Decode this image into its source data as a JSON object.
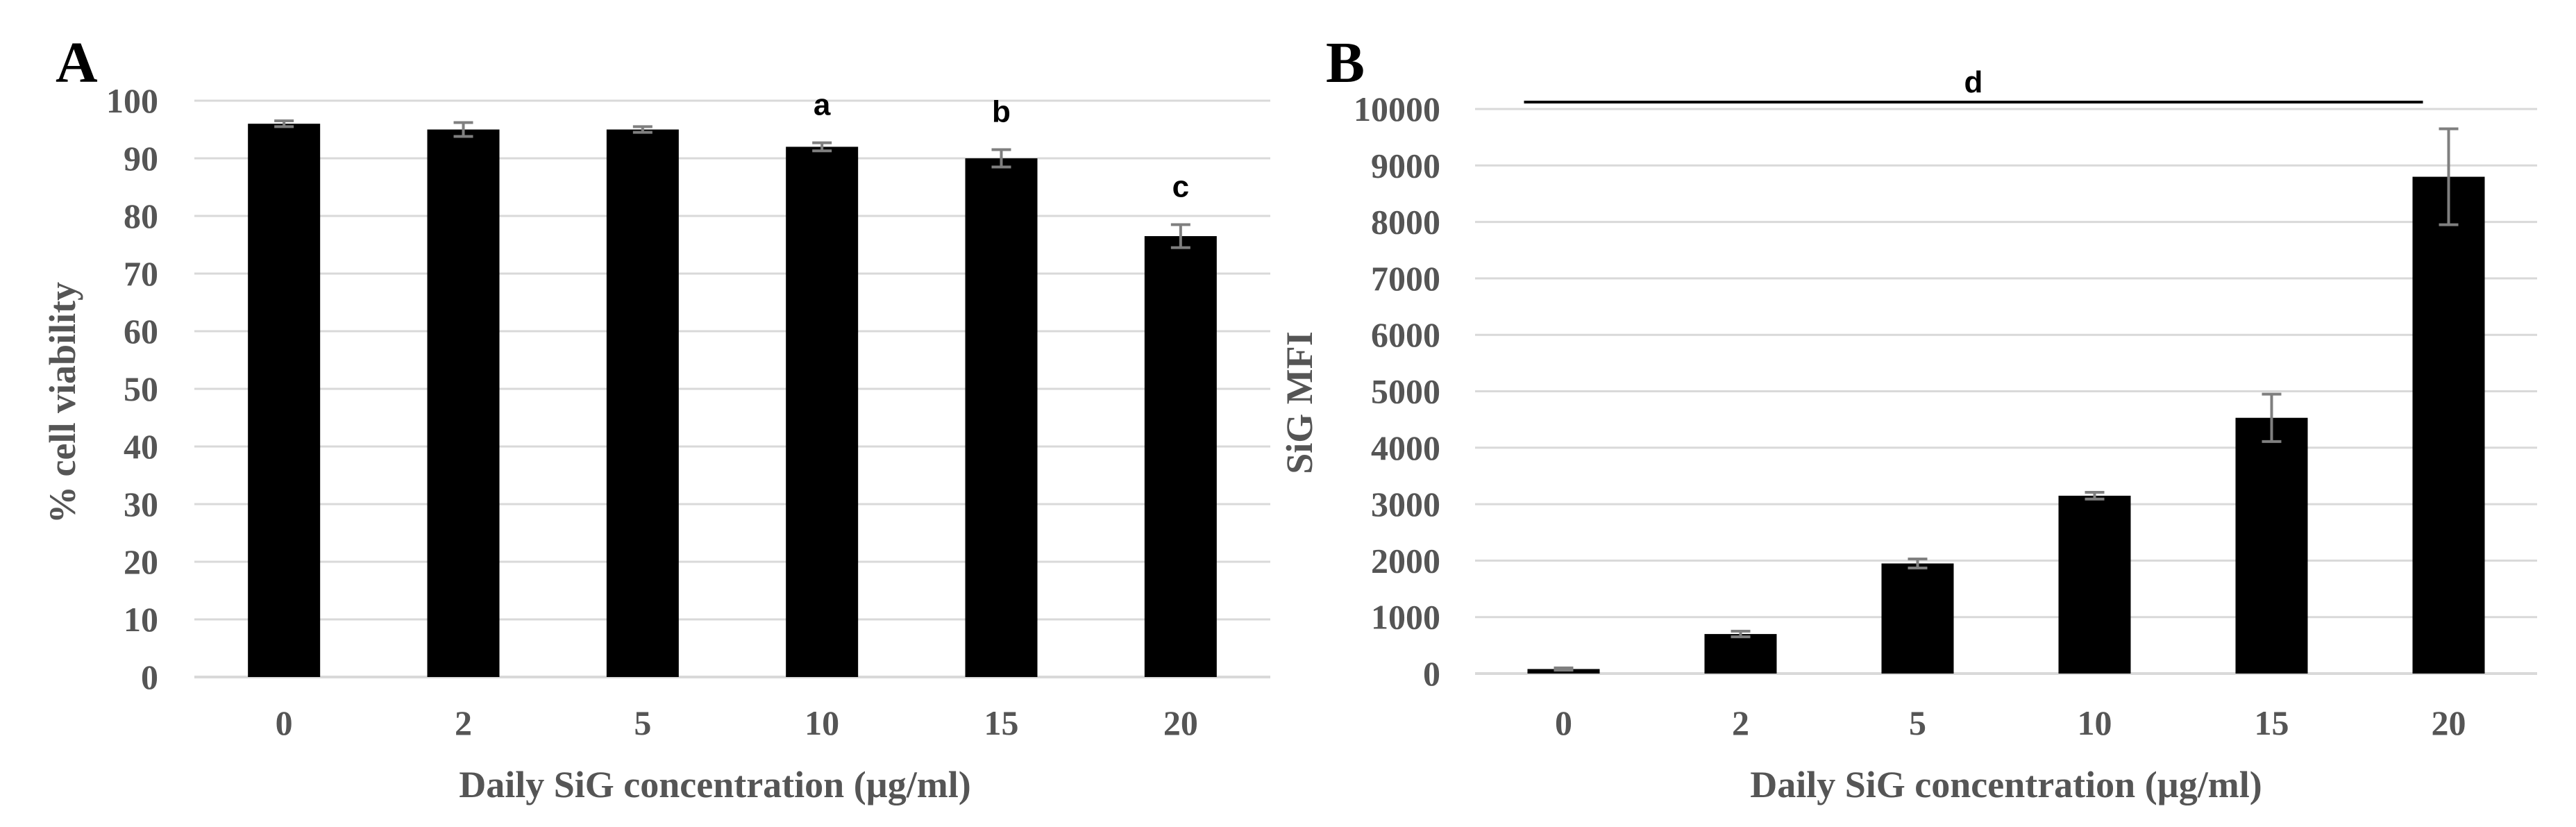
{
  "chart_data": [
    {
      "panel_label": "A",
      "type": "bar",
      "categories": [
        "0",
        "2",
        "5",
        "10",
        "15",
        "20"
      ],
      "values": [
        96,
        95,
        95,
        92,
        90,
        76.5
      ],
      "errors": [
        0.5,
        1.2,
        0.5,
        0.7,
        1.5,
        2.0
      ],
      "significance": [
        "",
        "",
        "",
        "a",
        "b",
        "c"
      ],
      "title": "",
      "xlabel": "Daily SiG concentration (µg/ml)",
      "ylabel": "% cell viability",
      "ylim": [
        0,
        100
      ],
      "yticks": [
        0,
        10,
        20,
        30,
        40,
        50,
        60,
        70,
        80,
        90,
        100
      ],
      "grid": true,
      "legend": "none"
    },
    {
      "panel_label": "B",
      "type": "bar",
      "categories": [
        "0",
        "2",
        "5",
        "10",
        "15",
        "20"
      ],
      "values": [
        80,
        700,
        1950,
        3150,
        4530,
        8800
      ],
      "errors": [
        20,
        50,
        80,
        60,
        420,
        850
      ],
      "significance_bracket": {
        "label": "d",
        "from": "0",
        "to": "20"
      },
      "title": "",
      "xlabel": "Daily SiG concentration (µg/ml)",
      "ylabel": "SiG MFI",
      "ylim": [
        0,
        10000
      ],
      "yticks": [
        0,
        1000,
        2000,
        3000,
        4000,
        5000,
        6000,
        7000,
        8000,
        9000,
        10000
      ],
      "grid": true,
      "legend": "none"
    }
  ]
}
